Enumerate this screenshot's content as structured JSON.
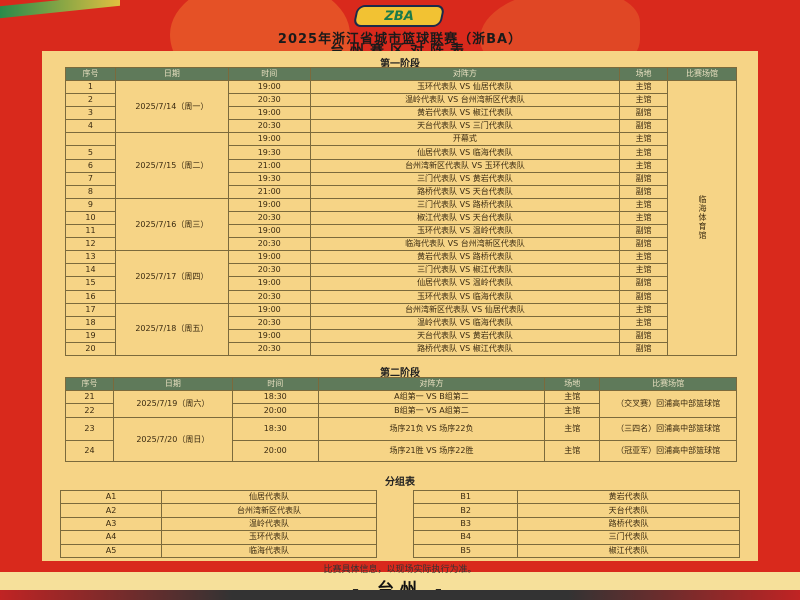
{
  "header": {
    "logo": "浙BA",
    "title": "2025年浙江省城市篮球联赛（浙BA）",
    "subtitle": "台州赛区对阵表"
  },
  "phase1": {
    "title": "第一阶段",
    "headers": [
      "序号",
      "日期",
      "时间",
      "对阵方",
      "场地",
      "比赛场馆"
    ],
    "venue": "临海体育馆",
    "days": [
      {
        "date": "2025/7/14（周一）",
        "rows": [
          [
            "1",
            "19:00",
            "玉环代表队 VS 仙居代表队",
            "主馆"
          ],
          [
            "2",
            "20:30",
            "温岭代表队 VS 台州湾新区代表队",
            "主馆"
          ],
          [
            "3",
            "19:00",
            "黄岩代表队 VS 椒江代表队",
            "副馆"
          ],
          [
            "4",
            "20:30",
            "天台代表队 VS 三门代表队",
            "副馆"
          ]
        ]
      },
      {
        "date": "2025/7/15（周二）",
        "rows": [
          [
            "",
            "19:00",
            "开幕式",
            "主馆"
          ],
          [
            "5",
            "19:30",
            "仙居代表队 VS 临海代表队",
            "主馆"
          ],
          [
            "6",
            "21:00",
            "台州湾新区代表队 VS 玉环代表队",
            "主馆"
          ],
          [
            "7",
            "19:30",
            "三门代表队 VS 黄岩代表队",
            "副馆"
          ],
          [
            "8",
            "21:00",
            "路桥代表队 VS 天台代表队",
            "副馆"
          ]
        ]
      },
      {
        "date": "2025/7/16（周三）",
        "rows": [
          [
            "9",
            "19:00",
            "三门代表队 VS 路桥代表队",
            "主馆"
          ],
          [
            "10",
            "20:30",
            "椒江代表队 VS 天台代表队",
            "主馆"
          ],
          [
            "11",
            "19:00",
            "玉环代表队 VS 温岭代表队",
            "副馆"
          ],
          [
            "12",
            "20:30",
            "临海代表队 VS 台州湾新区代表队",
            "副馆"
          ]
        ]
      },
      {
        "date": "2025/7/17（周四）",
        "rows": [
          [
            "13",
            "19:00",
            "黄岩代表队 VS 路桥代表队",
            "主馆"
          ],
          [
            "14",
            "20:30",
            "三门代表队 VS 椒江代表队",
            "主馆"
          ],
          [
            "15",
            "19:00",
            "仙居代表队 VS 温岭代表队",
            "副馆"
          ],
          [
            "16",
            "20:30",
            "玉环代表队 VS 临海代表队",
            "副馆"
          ]
        ]
      },
      {
        "date": "2025/7/18（周五）",
        "rows": [
          [
            "17",
            "19:00",
            "台州湾新区代表队 VS 仙居代表队",
            "主馆"
          ],
          [
            "18",
            "20:30",
            "温岭代表队 VS 临海代表队",
            "主馆"
          ],
          [
            "19",
            "19:00",
            "天台代表队 VS 黄岩代表队",
            "副馆"
          ],
          [
            "20",
            "20:30",
            "路桥代表队 VS 椒江代表队",
            "副馆"
          ]
        ]
      }
    ]
  },
  "phase2": {
    "title": "第二阶段",
    "headers": [
      "序号",
      "日期",
      "时间",
      "对阵方",
      "场地",
      "比赛场馆"
    ],
    "days": [
      {
        "date": "2025/7/19（周六）",
        "rows": [
          [
            "21",
            "18:30",
            "A组第一 VS B组第二",
            "主馆"
          ],
          [
            "22",
            "20:00",
            "B组第一 VS A组第二",
            "主馆"
          ]
        ]
      },
      {
        "date": "2025/7/20（周日）",
        "rows": [
          [
            "23",
            "18:30",
            "场序21负 VS 场序22负",
            "主馆"
          ],
          [
            "24",
            "20:00",
            "场序21胜 VS 场序22胜",
            "主馆"
          ]
        ]
      }
    ],
    "venues": [
      "（交叉赛）回浦高中部篮球馆",
      "（三四名）回浦高中部篮球馆",
      "（冠亚军）回浦高中部篮球馆"
    ]
  },
  "groups": {
    "title": "分组表",
    "a": [
      [
        "A1",
        "仙居代表队"
      ],
      [
        "A2",
        "台州湾新区代表队"
      ],
      [
        "A3",
        "温岭代表队"
      ],
      [
        "A4",
        "玉环代表队"
      ],
      [
        "A5",
        "临海代表队"
      ]
    ],
    "b": [
      [
        "B1",
        "黄岩代表队"
      ],
      [
        "B2",
        "天台代表队"
      ],
      [
        "B3",
        "路桥代表队"
      ],
      [
        "B4",
        "三门代表队"
      ],
      [
        "B5",
        "椒江代表队"
      ]
    ]
  },
  "footer": {
    "note": "比赛具体信息，以现场实际执行为准。",
    "city": "- 台州 -"
  }
}
